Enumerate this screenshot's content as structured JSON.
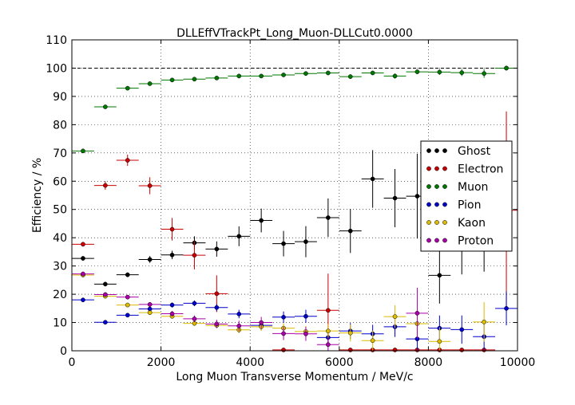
{
  "chart_data": {
    "type": "scatter",
    "title": "DLLEffVTrackPt_Long_Muon-DLLCut0.0000",
    "xlabel": "Long Muon Transverse Momentum / MeV/c",
    "ylabel": "Efficiency / %",
    "xlim": [
      0,
      10000
    ],
    "ylim": [
      0,
      110
    ],
    "xticks": [
      0,
      2000,
      4000,
      6000,
      8000,
      10000
    ],
    "yticks": [
      0,
      10,
      20,
      30,
      40,
      50,
      60,
      70,
      80,
      90,
      100,
      110
    ],
    "grid": true,
    "reference_line": 100,
    "legend_position": "right",
    "x": [
      250,
      750,
      1250,
      1750,
      2250,
      2750,
      3250,
      3750,
      4250,
      4750,
      5250,
      5750,
      6250,
      6750,
      7250,
      7750,
      8250,
      8750,
      9250,
      9750
    ],
    "x_halfwidth": 250,
    "series": [
      {
        "name": "Ghost",
        "color": "#000000",
        "values": [
          32.7,
          23.6,
          26.9,
          32.3,
          33.9,
          38.2,
          36.0,
          40.5,
          46.1,
          37.9,
          38.6,
          47.1,
          42.4,
          60.8,
          54.0,
          54.7,
          26.7,
          47.0,
          44.0,
          100
        ],
        "errors": [
          0.8,
          0.8,
          0.8,
          1.2,
          1.5,
          2.3,
          2.7,
          3.5,
          4.2,
          4.5,
          5.5,
          6.8,
          7.8,
          10.2,
          10.3,
          15.0,
          10.0,
          20.0,
          16.0,
          0.5
        ]
      },
      {
        "name": "Electron",
        "color": "#cc0000",
        "values": [
          37.7,
          58.5,
          67.4,
          58.4,
          43.0,
          33.8,
          20.2,
          null,
          null,
          0.3,
          null,
          14.3,
          0.3,
          0.3,
          0.3,
          0.3,
          0.3,
          0.3,
          0.3,
          49.7
        ],
        "errors": [
          0.8,
          1.5,
          2.0,
          3.0,
          4.0,
          5.0,
          6.5,
          null,
          null,
          0.3,
          null,
          13.0,
          0.3,
          0.3,
          0.3,
          0.3,
          0.3,
          0.3,
          0.3,
          35.0
        ]
      },
      {
        "name": "Muon",
        "color": "#007700",
        "values": [
          70.7,
          86.3,
          92.9,
          94.5,
          95.8,
          96.1,
          96.5,
          97.2,
          97.2,
          97.6,
          98.1,
          98.3,
          97.0,
          98.3,
          97.2,
          98.7,
          98.6,
          98.4,
          98.1,
          100
        ],
        "errors": [
          0.4,
          0.4,
          0.4,
          0.4,
          0.4,
          0.4,
          0.4,
          0.4,
          0.4,
          0.4,
          0.4,
          0.4,
          0.8,
          0.6,
          0.9,
          0.8,
          1.0,
          1.2,
          1.5,
          0.4
        ]
      },
      {
        "name": "Pion",
        "color": "#0000cc",
        "values": [
          18.0,
          10.1,
          12.6,
          14.8,
          16.2,
          16.8,
          15.3,
          13.0,
          9.0,
          11.9,
          12.2,
          4.7,
          7.0,
          6.0,
          8.5,
          4.2,
          8.0,
          7.5,
          5.0,
          15.0
        ],
        "errors": [
          0.3,
          0.5,
          0.6,
          0.7,
          0.9,
          1.0,
          1.3,
          1.5,
          1.7,
          2.0,
          2.3,
          2.5,
          2.8,
          3.2,
          3.6,
          4.0,
          4.5,
          5.0,
          5.5,
          6.0
        ]
      },
      {
        "name": "Kaon",
        "color": "#ddbb00",
        "values": [
          26.8,
          19.3,
          16.2,
          13.5,
          12.2,
          9.7,
          9.0,
          7.4,
          8.5,
          8.0,
          6.8,
          7.0,
          6.3,
          3.6,
          12.1,
          9.6,
          3.3,
          null,
          10.2,
          null
        ],
        "errors": [
          0.5,
          0.5,
          0.6,
          0.7,
          0.8,
          0.9,
          1.0,
          1.2,
          1.5,
          1.8,
          2.0,
          2.5,
          3.0,
          3.5,
          4.0,
          4.5,
          5.0,
          null,
          7.0,
          null
        ]
      },
      {
        "name": "Proton",
        "color": "#aa00aa",
        "values": [
          27.2,
          19.9,
          19.0,
          16.4,
          13.1,
          11.3,
          9.5,
          8.8,
          10.0,
          6.1,
          6.0,
          2.2,
          null,
          null,
          null,
          13.3,
          null,
          null,
          null,
          null
        ],
        "errors": [
          0.5,
          0.6,
          0.7,
          0.8,
          1.0,
          1.2,
          1.5,
          1.8,
          2.0,
          2.3,
          2.5,
          2.5,
          null,
          null,
          null,
          9.0,
          null,
          null,
          null,
          null
        ]
      }
    ]
  }
}
